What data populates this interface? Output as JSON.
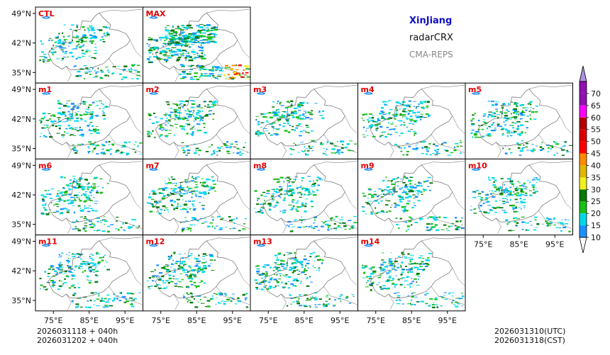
{
  "header": {
    "region": "XinJiang",
    "product": "radarCRX",
    "model": "CMA-REPS"
  },
  "footer": {
    "init_time": "2026031118",
    "init_lead": "040h",
    "init_time_cst": "2026031202",
    "init_lead_cst": "040h",
    "valid_utc": "2026031310(UTC)",
    "valid_cst": "2026031318(CST)"
  },
  "chart_data": {
    "type": "heatmap",
    "title": "XinJiang radarCRX CMA-REPS",
    "panels": [
      {
        "label": "CTL",
        "row": 0,
        "col": 0
      },
      {
        "label": "MAX",
        "row": 0,
        "col": 1
      },
      {
        "label": "m1",
        "row": 1,
        "col": 0
      },
      {
        "label": "m2",
        "row": 1,
        "col": 1
      },
      {
        "label": "m3",
        "row": 1,
        "col": 2
      },
      {
        "label": "m4",
        "row": 1,
        "col": 3
      },
      {
        "label": "m5",
        "row": 1,
        "col": 4
      },
      {
        "label": "m6",
        "row": 2,
        "col": 0
      },
      {
        "label": "m7",
        "row": 2,
        "col": 1
      },
      {
        "label": "m8",
        "row": 2,
        "col": 2
      },
      {
        "label": "m9",
        "row": 2,
        "col": 3
      },
      {
        "label": "m10",
        "row": 2,
        "col": 4
      },
      {
        "label": "m11",
        "row": 3,
        "col": 0
      },
      {
        "label": "m12",
        "row": 3,
        "col": 1
      },
      {
        "label": "m13",
        "row": 3,
        "col": 2
      },
      {
        "label": "m14",
        "row": 3,
        "col": 3
      }
    ],
    "xlim": [
      70,
      100
    ],
    "ylim": [
      32.5,
      50.5
    ],
    "xticks": [
      75,
      85,
      95
    ],
    "xtick_labels": [
      "75°E",
      "85°E",
      "95°E"
    ],
    "yticks": [
      35,
      42,
      49
    ],
    "ytick_labels": [
      "35°N",
      "42°N",
      "49°N"
    ],
    "colorbar": {
      "levels": [
        10,
        15,
        20,
        25,
        30,
        35,
        40,
        45,
        50,
        55,
        60,
        65,
        70
      ],
      "labels": [
        "10",
        "15",
        "20",
        "25",
        "30",
        "35",
        "40",
        "45",
        "50",
        "55",
        "60",
        "65",
        "70"
      ],
      "colors": [
        "#1e90ff",
        "#00d8e8",
        "#18c018",
        "#0a780a",
        "#f0f020",
        "#e0b800",
        "#ff8c00",
        "#ff0000",
        "#dd0000",
        "#b40000",
        "#ff00ff",
        "#9010b0",
        "#b090e0"
      ],
      "extend": "both",
      "under_color": "#ffffff",
      "over_color": "#b090e0"
    }
  }
}
